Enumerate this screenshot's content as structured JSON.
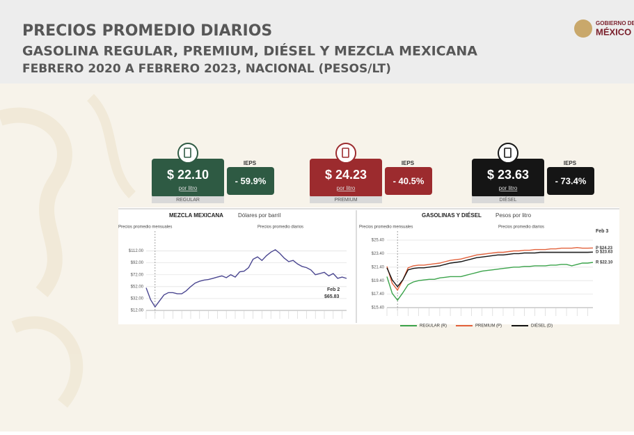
{
  "header": {
    "title": "PRECIOS PROMEDIO DIARIOS",
    "subtitle": "GASOLINA REGULAR, PREMIUM, DIÉSEL Y MEZCLA MEXICANA",
    "period": "FEBRERO 2020 A FEBRERO 2023, NACIONAL (PESOS/LT)",
    "logo_top": "GOBIERNO DE",
    "logo_main": "MÉXICO"
  },
  "cards": [
    {
      "price": "$ 22.10",
      "unit": "por litro",
      "name": "REGULAR",
      "subsidy_label": "IEPS",
      "subsidy": "- 59.9%",
      "color": "#2e5a43"
    },
    {
      "price": "$ 24.23",
      "unit": "por litro",
      "name": "PREMIUM",
      "subsidy_label": "IEPS",
      "subsidy": "- 40.5%",
      "color": "#9c2b2e"
    },
    {
      "price": "$ 23.63",
      "unit": "por litro",
      "name": "DIÉSEL",
      "subsidy_label": "IEPS",
      "subsidy": "- 73.4%",
      "color": "#151515"
    }
  ],
  "charts": [
    {
      "type": "line",
      "title": "MEZCLA MEXICANA",
      "subtitle": "Dólares por barril",
      "monthly_note": "Precios promedio mensuales",
      "daily_note": "Precios promedio diarios",
      "end_date": "Feb 2",
      "end_label": "$65.83",
      "ylim": [
        12,
        122
      ],
      "yticks": [
        {
          "value": 12,
          "label": "$12.00"
        },
        {
          "value": 32,
          "label": "$32.00"
        },
        {
          "value": 52,
          "label": "$52.00"
        },
        {
          "value": 72,
          "label": "$72.00"
        },
        {
          "value": 92,
          "label": "$92.00"
        },
        {
          "value": 112,
          "label": "$112.00"
        }
      ],
      "grid": true,
      "series": [
        {
          "name": "MEZCLA MEXICANA",
          "color": "#4a4690",
          "values": [
            50,
            30,
            18,
            28,
            38,
            42,
            42,
            40,
            40,
            45,
            52,
            58,
            61,
            63,
            64,
            66,
            68,
            70,
            67,
            72,
            68,
            77,
            78,
            84,
            98,
            102,
            96,
            104,
            110,
            114,
            108,
            100,
            94,
            96,
            90,
            86,
            84,
            80,
            72,
            74,
            76,
            70,
            74,
            66,
            68,
            65.83
          ]
        }
      ]
    },
    {
      "type": "line",
      "title": "GASOLINAS Y DIÉSEL",
      "subtitle": "Pesos por litro",
      "monthly_note": "Precios promedio mensuales",
      "daily_note": "Precios promedio diarios",
      "end_date": "Feb 3",
      "ylim": [
        15.4,
        25.4
      ],
      "yticks": [
        {
          "value": 15.4,
          "label": "$15.40"
        },
        {
          "value": 17.4,
          "label": "$17.40"
        },
        {
          "value": 19.4,
          "label": "$19.40"
        },
        {
          "value": 21.4,
          "label": "$21.40"
        },
        {
          "value": 23.4,
          "label": "$23.40"
        },
        {
          "value": 25.4,
          "label": "$25.40"
        }
      ],
      "grid": true,
      "series": [
        {
          "name": "REGULAR (R)",
          "color": "#3aa34a",
          "end_label": "R $22.10",
          "values": [
            20.0,
            17.5,
            16.5,
            17.6,
            18.8,
            19.2,
            19.4,
            19.5,
            19.6,
            19.6,
            19.8,
            19.9,
            20.0,
            20.0,
            20.0,
            20.2,
            20.4,
            20.6,
            20.8,
            20.9,
            21.0,
            21.1,
            21.2,
            21.3,
            21.4,
            21.4,
            21.5,
            21.5,
            21.6,
            21.6,
            21.6,
            21.7,
            21.7,
            21.8,
            21.8,
            21.6,
            21.8,
            22.0,
            22.0,
            22.1
          ]
        },
        {
          "name": "PREMIUM (P)",
          "color": "#e2603a",
          "end_label": "P $24.23",
          "values": [
            21.5,
            19.0,
            18.0,
            19.5,
            21.3,
            21.6,
            21.7,
            21.7,
            21.8,
            21.9,
            22.0,
            22.2,
            22.4,
            22.5,
            22.6,
            22.8,
            23.0,
            23.2,
            23.3,
            23.4,
            23.5,
            23.6,
            23.6,
            23.7,
            23.8,
            23.8,
            23.9,
            23.9,
            24.0,
            24.0,
            24.0,
            24.1,
            24.1,
            24.2,
            24.2,
            24.2,
            24.3,
            24.2,
            24.2,
            24.23
          ]
        },
        {
          "name": "DIÉSEL (D)",
          "color": "#111111",
          "end_label": "D $23.63",
          "values": [
            21.3,
            19.5,
            18.5,
            19.5,
            21.0,
            21.2,
            21.3,
            21.3,
            21.4,
            21.5,
            21.6,
            21.8,
            22.0,
            22.1,
            22.2,
            22.4,
            22.6,
            22.8,
            22.9,
            23.0,
            23.1,
            23.2,
            23.2,
            23.3,
            23.4,
            23.4,
            23.5,
            23.5,
            23.5,
            23.6,
            23.6,
            23.6,
            23.6,
            23.6,
            23.6,
            23.6,
            23.6,
            23.6,
            23.6,
            23.63
          ]
        }
      ]
    }
  ]
}
